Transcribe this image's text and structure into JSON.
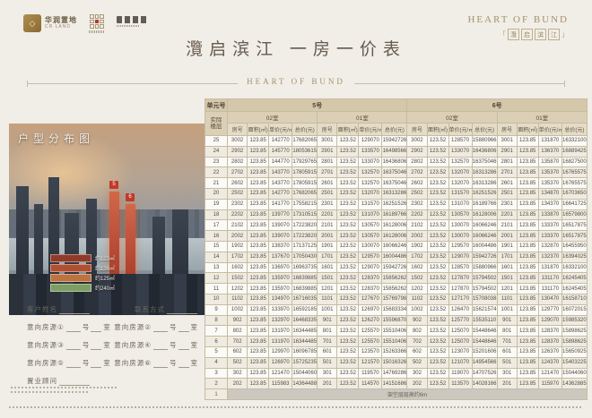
{
  "header": {
    "logo1_cn": "华润置地",
    "logo1_en": "CR LAND",
    "logo1_mark": "◇",
    "brand_en": "HEART OF BUND",
    "brand_boxed": [
      "灠",
      "启",
      "滨",
      "江"
    ],
    "bracket_left": "「",
    "bracket_right": "」",
    "title": "灠启滨江  一房一价表",
    "divider_caption": "HEART OF BUND"
  },
  "photo": {
    "overlay_title": "户型分布图",
    "tower_tags": [
      "5",
      "6"
    ],
    "legend": [
      {
        "label": "约123㎡",
        "color": "#8f3b2c"
      },
      {
        "label": "约138㎡",
        "color": "#b05033"
      },
      {
        "label": "约125㎡",
        "color": "#bd7340"
      },
      {
        "label": "约240㎡",
        "color": "#7d9e63"
      }
    ]
  },
  "form": {
    "name_label": "客户姓名",
    "contact_label": "联系方式",
    "intent_label": "意向房源",
    "intent_slots": [
      "①",
      "②",
      "③",
      "④",
      "⑤",
      "⑥"
    ],
    "unit_suffix": "号",
    "room_suffix": "室",
    "advisor_label": "置业顾问"
  },
  "table": {
    "unit_header": "单元号",
    "floor_header_line1": "实际",
    "floor_header_line2": "楼层",
    "buildings": [
      {
        "name": "5号",
        "units": [
          "02室",
          "01室"
        ]
      },
      {
        "name": "6号",
        "units": [
          "02室",
          "01室"
        ]
      }
    ],
    "col_headers": [
      "房号",
      "面积(㎡)",
      "单价(元/㎡)",
      "总价(元)"
    ],
    "stilt_note": "架空层层高约6m",
    "rows": [
      {
        "floor": "25",
        "units": [
          [
            "3002",
            "123.85",
            "142770",
            "17682065"
          ],
          [
            "3001",
            "123.52",
            "129070",
            "15942726"
          ],
          [
            "3002",
            "123.52",
            "128570",
            "15880966"
          ],
          [
            "3001",
            "123.85",
            "131870",
            "16332100"
          ]
        ]
      },
      {
        "floor": "24",
        "units": [
          [
            "2902",
            "123.85",
            "145770",
            "18053615"
          ],
          [
            "2901",
            "123.52",
            "133570",
            "16498566"
          ],
          [
            "2902",
            "123.52",
            "133070",
            "16436806"
          ],
          [
            "2901",
            "123.85",
            "136370",
            "16889425"
          ]
        ]
      },
      {
        "floor": "23",
        "units": [
          [
            "2802",
            "123.85",
            "144770",
            "17929765"
          ],
          [
            "2801",
            "123.52",
            "133070",
            "16436806"
          ],
          [
            "2802",
            "123.52",
            "132570",
            "16375046"
          ],
          [
            "2801",
            "123.85",
            "135870",
            "16827500"
          ]
        ]
      },
      {
        "floor": "22",
        "units": [
          [
            "2702",
            "123.85",
            "143770",
            "17805915"
          ],
          [
            "2701",
            "123.52",
            "132570",
            "16375046"
          ],
          [
            "2702",
            "123.52",
            "132070",
            "16313286"
          ],
          [
            "2701",
            "123.85",
            "135370",
            "16765575"
          ]
        ]
      },
      {
        "floor": "21",
        "units": [
          [
            "2602",
            "123.85",
            "143770",
            "17805915"
          ],
          [
            "2601",
            "123.52",
            "132570",
            "16375046"
          ],
          [
            "2602",
            "123.52",
            "132070",
            "16313286"
          ],
          [
            "2601",
            "123.85",
            "135370",
            "16765575"
          ]
        ]
      },
      {
        "floor": "20",
        "units": [
          [
            "2502",
            "123.85",
            "142770",
            "17682065"
          ],
          [
            "2501",
            "123.52",
            "132070",
            "16313286"
          ],
          [
            "2502",
            "123.52",
            "131570",
            "16251526"
          ],
          [
            "2501",
            "123.85",
            "134870",
            "16703650"
          ]
        ]
      },
      {
        "floor": "19",
        "units": [
          [
            "2302",
            "123.85",
            "141770",
            "17558215"
          ],
          [
            "2301",
            "123.52",
            "131570",
            "16251526"
          ],
          [
            "2302",
            "123.52",
            "131070",
            "16189766"
          ],
          [
            "2301",
            "123.85",
            "134370",
            "16641725"
          ]
        ]
      },
      {
        "floor": "18",
        "units": [
          [
            "2202",
            "123.85",
            "139770",
            "17310515"
          ],
          [
            "2201",
            "123.52",
            "131070",
            "16189766"
          ],
          [
            "2202",
            "123.52",
            "130570",
            "16128006"
          ],
          [
            "2201",
            "123.85",
            "133870",
            "16579800"
          ]
        ]
      },
      {
        "floor": "17",
        "units": [
          [
            "2102",
            "123.85",
            "139070",
            "17223820"
          ],
          [
            "2101",
            "123.52",
            "130570",
            "16128006"
          ],
          [
            "2102",
            "123.52",
            "130070",
            "16066246"
          ],
          [
            "2101",
            "123.85",
            "133370",
            "16517875"
          ]
        ]
      },
      {
        "floor": "16",
        "units": [
          [
            "2002",
            "123.85",
            "139070",
            "17223820"
          ],
          [
            "2001",
            "123.52",
            "130570",
            "16128006"
          ],
          [
            "2002",
            "123.52",
            "130070",
            "16066246"
          ],
          [
            "2001",
            "123.85",
            "133370",
            "16517875"
          ]
        ]
      },
      {
        "floor": "15",
        "units": [
          [
            "1902",
            "123.85",
            "138370",
            "17137125"
          ],
          [
            "1901",
            "123.52",
            "130070",
            "16066246"
          ],
          [
            "1902",
            "123.52",
            "129570",
            "16004486"
          ],
          [
            "1901",
            "123.85",
            "132870",
            "16455950"
          ]
        ]
      },
      {
        "floor": "14",
        "units": [
          [
            "1702",
            "123.85",
            "137670",
            "17050430"
          ],
          [
            "1701",
            "123.52",
            "129570",
            "16004486"
          ],
          [
            "1702",
            "123.52",
            "129070",
            "15942726"
          ],
          [
            "1701",
            "123.85",
            "132370",
            "16394025"
          ]
        ]
      },
      {
        "floor": "13",
        "units": [
          [
            "1602",
            "123.85",
            "136970",
            "16963735"
          ],
          [
            "1601",
            "123.52",
            "129070",
            "15942726"
          ],
          [
            "1602",
            "123.52",
            "128570",
            "15880966"
          ],
          [
            "1601",
            "123.85",
            "131870",
            "16332100"
          ]
        ]
      },
      {
        "floor": "12",
        "units": [
          [
            "1502",
            "123.85",
            "135970",
            "16839885"
          ],
          [
            "1501",
            "123.52",
            "128370",
            "15856262"
          ],
          [
            "1502",
            "123.52",
            "127870",
            "15794502"
          ],
          [
            "1501",
            "123.85",
            "131170",
            "16245405"
          ]
        ]
      },
      {
        "floor": "11",
        "units": [
          [
            "1202",
            "123.85",
            "135970",
            "16839885"
          ],
          [
            "1201",
            "123.52",
            "128370",
            "15856262"
          ],
          [
            "1202",
            "123.52",
            "127870",
            "15794502"
          ],
          [
            "1201",
            "123.85",
            "131170",
            "16245405"
          ]
        ]
      },
      {
        "floor": "10",
        "units": [
          [
            "1102",
            "123.85",
            "134970",
            "16716035"
          ],
          [
            "1101",
            "123.52",
            "127670",
            "15769798"
          ],
          [
            "1102",
            "123.52",
            "127170",
            "15708038"
          ],
          [
            "1101",
            "123.85",
            "130470",
            "16158710"
          ]
        ]
      },
      {
        "floor": "9",
        "units": [
          [
            "1002",
            "123.85",
            "133970",
            "16592185"
          ],
          [
            "1001",
            "123.52",
            "126970",
            "15683334"
          ],
          [
            "1002",
            "123.52",
            "126470",
            "15621574"
          ],
          [
            "1001",
            "123.85",
            "129770",
            "16072015"
          ]
        ]
      },
      {
        "floor": "8",
        "units": [
          [
            "902",
            "123.85",
            "132970",
            "16468335"
          ],
          [
            "901",
            "123.52",
            "126270",
            "15596870"
          ],
          [
            "902",
            "123.52",
            "125770",
            "15535110"
          ],
          [
            "901",
            "123.85",
            "129070",
            "15985320"
          ]
        ]
      },
      {
        "floor": "7",
        "units": [
          [
            "802",
            "123.85",
            "131970",
            "16344485"
          ],
          [
            "801",
            "123.52",
            "125570",
            "15510406"
          ],
          [
            "802",
            "123.52",
            "125070",
            "15448646"
          ],
          [
            "801",
            "123.85",
            "128370",
            "15898625"
          ]
        ]
      },
      {
        "floor": "6",
        "units": [
          [
            "702",
            "123.85",
            "131970",
            "16344485"
          ],
          [
            "701",
            "123.52",
            "125570",
            "15510406"
          ],
          [
            "702",
            "123.52",
            "125070",
            "15448646"
          ],
          [
            "701",
            "123.85",
            "128370",
            "15898625"
          ]
        ]
      },
      {
        "floor": "5",
        "units": [
          [
            "602",
            "123.85",
            "129970",
            "16096785"
          ],
          [
            "601",
            "123.52",
            "123570",
            "15263366"
          ],
          [
            "602",
            "123.52",
            "123070",
            "15201606"
          ],
          [
            "601",
            "123.85",
            "126370",
            "15650925"
          ]
        ]
      },
      {
        "floor": "4",
        "units": [
          [
            "502",
            "123.85",
            "126970",
            "15725235"
          ],
          [
            "501",
            "123.52",
            "121570",
            "15016326"
          ],
          [
            "502",
            "123.52",
            "121070",
            "14954566"
          ],
          [
            "501",
            "123.85",
            "124370",
            "15403225"
          ]
        ]
      },
      {
        "floor": "3",
        "units": [
          [
            "302",
            "123.85",
            "121470",
            "15044060"
          ],
          [
            "301",
            "123.52",
            "119570",
            "14769286"
          ],
          [
            "302",
            "123.52",
            "119070",
            "14707526"
          ],
          [
            "301",
            "123.85",
            "121470",
            "15044060"
          ]
        ]
      },
      {
        "floor": "2",
        "units": [
          [
            "202",
            "123.85",
            "115983",
            "14364488"
          ],
          [
            "201",
            "123.52",
            "114570",
            "14151686"
          ],
          [
            "202",
            "123.52",
            "113570",
            "14028166"
          ],
          [
            "201",
            "123.85",
            "115970",
            "14362885"
          ]
        ]
      },
      {
        "floor": "1",
        "stilt": true
      }
    ]
  }
}
